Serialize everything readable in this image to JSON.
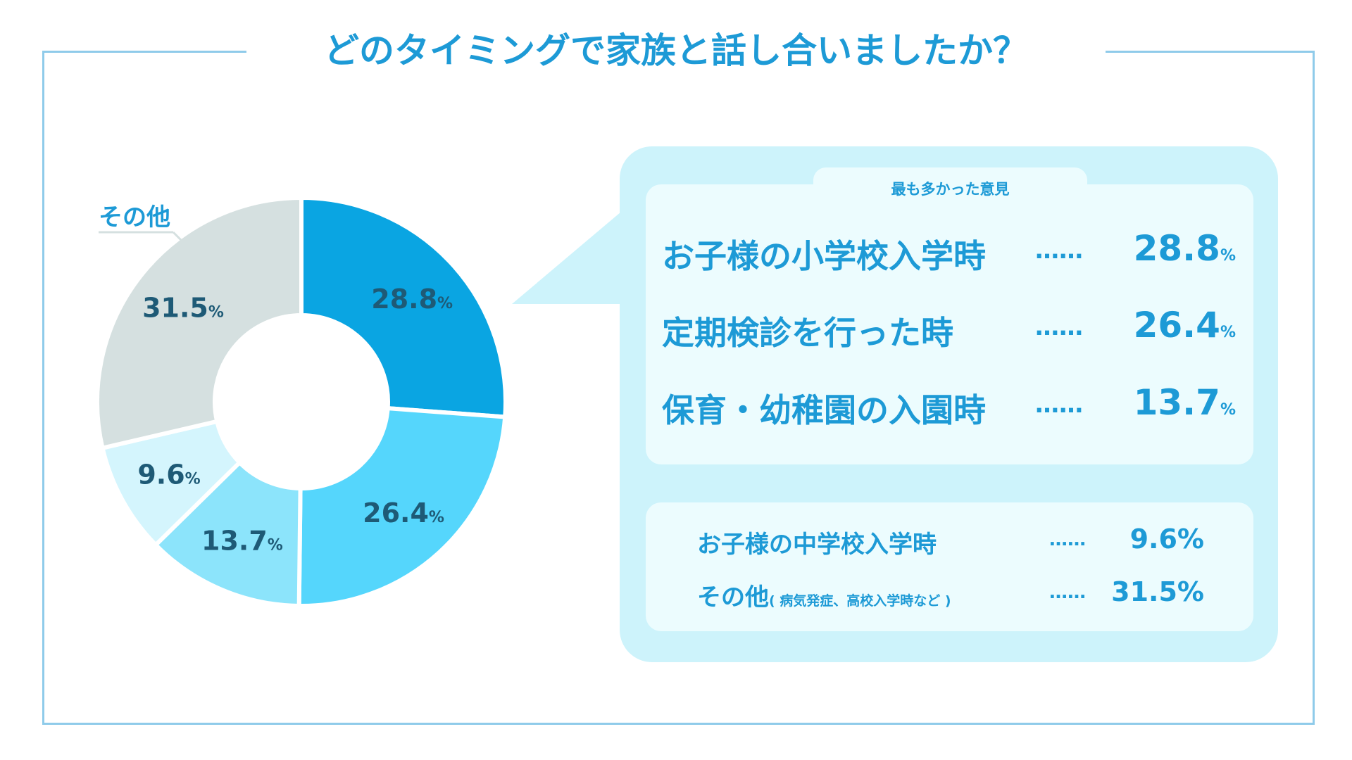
{
  "title": "どのタイミングで家族と話し合いましたか？",
  "colors": {
    "accent": "#1d9ad6",
    "frame": "#8fcbea",
    "label_dark": "#1e5a76",
    "panel_bg": "#cdf3fb",
    "box_bg": "#ecfcfe"
  },
  "chart_data": {
    "type": "pie",
    "donut": true,
    "title": "どのタイミングで家族と話し合いましたか？",
    "unit": "%",
    "slices": [
      {
        "value": 28.8,
        "label": "28.8",
        "color": "#0aa5e2"
      },
      {
        "value": 26.4,
        "label": "26.4",
        "color": "#55d6fc"
      },
      {
        "value": 13.7,
        "label": "13.7",
        "color": "#8ce4fb"
      },
      {
        "value": 9.6,
        "label": "9.6",
        "color": "#d4f5fd"
      },
      {
        "value": 31.5,
        "label": "31.5",
        "color": "#d5e0e0"
      }
    ],
    "other_label": "その他"
  },
  "panel": {
    "tab_label": "最も多かった意見",
    "top": [
      {
        "label": "お子様の小学校入学時",
        "dots": "……",
        "value": "28.8",
        "unit": "%"
      },
      {
        "label": "定期検診を行った時",
        "dots": "……",
        "value": "26.4",
        "unit": "%"
      },
      {
        "label": "保育・幼稚園の入園時",
        "dots": "……",
        "value": "13.7",
        "unit": "%"
      }
    ],
    "others": [
      {
        "label": "お子様の中学校入学時",
        "sub": "",
        "dots": "……",
        "value": "9.6%"
      },
      {
        "label": "その他",
        "sub": "( 病気発症、高校入学時など )",
        "dots": "……",
        "value": "31.5%"
      }
    ]
  }
}
